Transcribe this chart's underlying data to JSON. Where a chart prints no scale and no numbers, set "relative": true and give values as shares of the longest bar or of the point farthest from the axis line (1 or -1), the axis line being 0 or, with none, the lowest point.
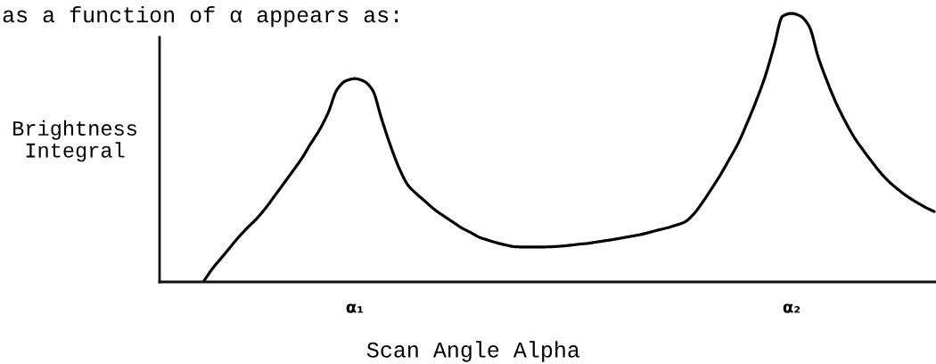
{
  "chart_data": {
    "type": "line",
    "relative": true,
    "annotations": [
      "as a function of α appears as:"
    ],
    "xlabel": "Scan Angle Alpha",
    "ylabel": "Brightness\nIntegral",
    "categories": [
      null,
      null,
      null,
      null,
      null,
      null,
      null,
      null,
      null,
      null,
      null,
      null,
      null,
      null,
      null,
      null,
      null,
      null,
      null,
      null,
      null,
      "α₁",
      null,
      null,
      null,
      null,
      null,
      null,
      null,
      null,
      null,
      null,
      null,
      null,
      null,
      null,
      null,
      null,
      null,
      null,
      null,
      null,
      null,
      null,
      null,
      null,
      null,
      null,
      null,
      null,
      null,
      null,
      null,
      null,
      null,
      null,
      null,
      null,
      null,
      null,
      null,
      null,
      null,
      null,
      null,
      null,
      null,
      null,
      null,
      null,
      "α₂",
      null,
      null,
      null,
      null,
      null,
      null,
      null,
      null,
      null,
      null,
      null,
      null,
      null,
      null,
      null,
      null
    ],
    "series": [
      {
        "color": "#000000",
        "values": [
          null,
          null,
          null,
          null,
          0,
          0.048,
          0.088,
          0.128,
          0.168,
          0.203,
          0.236,
          0.275,
          0.32,
          0.365,
          0.411,
          0.457,
          0.512,
          0.564,
          0.629,
          0.716,
          0.749,
          0.757,
          0.748,
          0.714,
          0.608,
          0.508,
          0.422,
          0.359,
          0.326,
          0.297,
          0.268,
          0.245,
          0.223,
          0.201,
          0.184,
          0.166,
          0.155,
          0.145,
          0.137,
          0.131,
          0.13,
          0.13,
          0.13,
          0.131,
          0.133,
          0.136,
          0.14,
          0.143,
          0.148,
          0.153,
          0.158,
          0.164,
          0.17,
          0.176,
          0.184,
          0.193,
          0.201,
          0.211,
          0.223,
          0.252,
          0.296,
          0.346,
          0.398,
          0.456,
          0.516,
          0.591,
          0.672,
          0.762,
          0.874,
          0.99,
          1,
          0.99,
          0.95,
          0.836,
          0.746,
          0.666,
          0.599,
          0.54,
          0.492,
          0.448,
          0.406,
          0.371,
          0.343,
          0.318,
          0.297,
          0.278,
          0.262
        ]
      }
    ]
  }
}
